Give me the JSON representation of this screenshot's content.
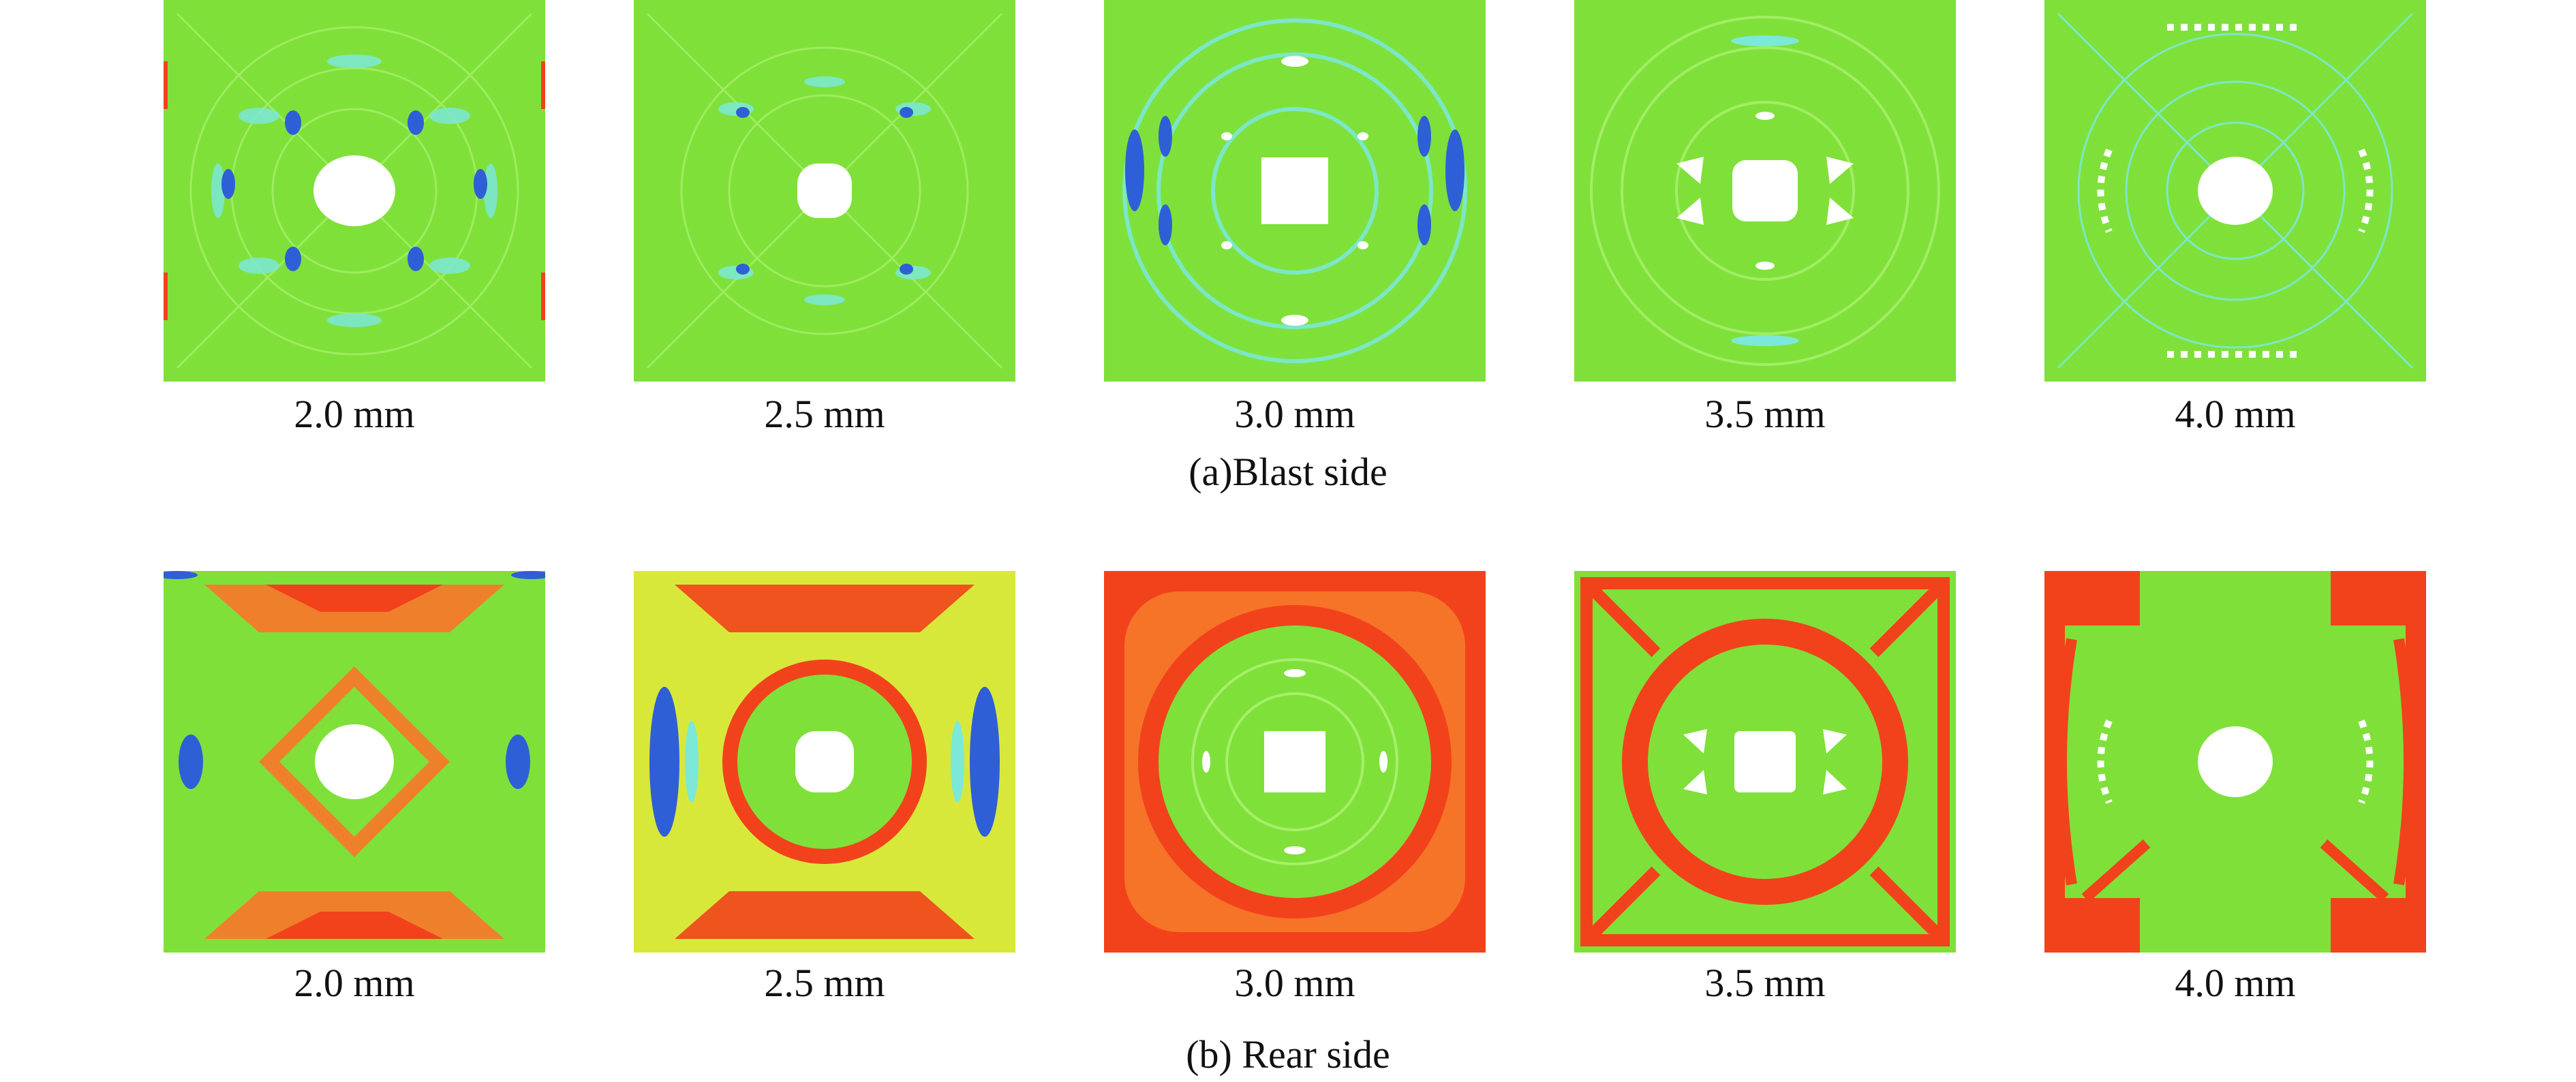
{
  "figure": {
    "rows": [
      {
        "caption": "(a)Blast side",
        "panels": [
          {
            "label": "2.0 mm",
            "pattern": "blast-ring-speckle"
          },
          {
            "label": "2.5 mm",
            "pattern": "blast-sparse"
          },
          {
            "label": "3.0 mm",
            "pattern": "blast-ring-blue"
          },
          {
            "label": "3.5 mm",
            "pattern": "blast-holes"
          },
          {
            "label": "4.0 mm",
            "pattern": "blast-dense-holes"
          }
        ]
      },
      {
        "caption": "(b) Rear side",
        "panels": [
          {
            "label": "2.0 mm",
            "pattern": "rear-diamond"
          },
          {
            "label": "2.5 mm",
            "pattern": "rear-cross-blue"
          },
          {
            "label": "3.0 mm",
            "pattern": "rear-ring"
          },
          {
            "label": "3.5 mm",
            "pattern": "rear-ring-thick"
          },
          {
            "label": "4.0 mm",
            "pattern": "rear-arcs"
          }
        ]
      }
    ]
  },
  "colors": {
    "green": "#7fe03a",
    "light_green": "#a6ef6a",
    "cyan": "#7be8d8",
    "blue": "#2f5fd6",
    "red": "#f2421c",
    "orange": "#f57a2a",
    "yellow": "#d8e83a",
    "hole": "#ffffff"
  }
}
